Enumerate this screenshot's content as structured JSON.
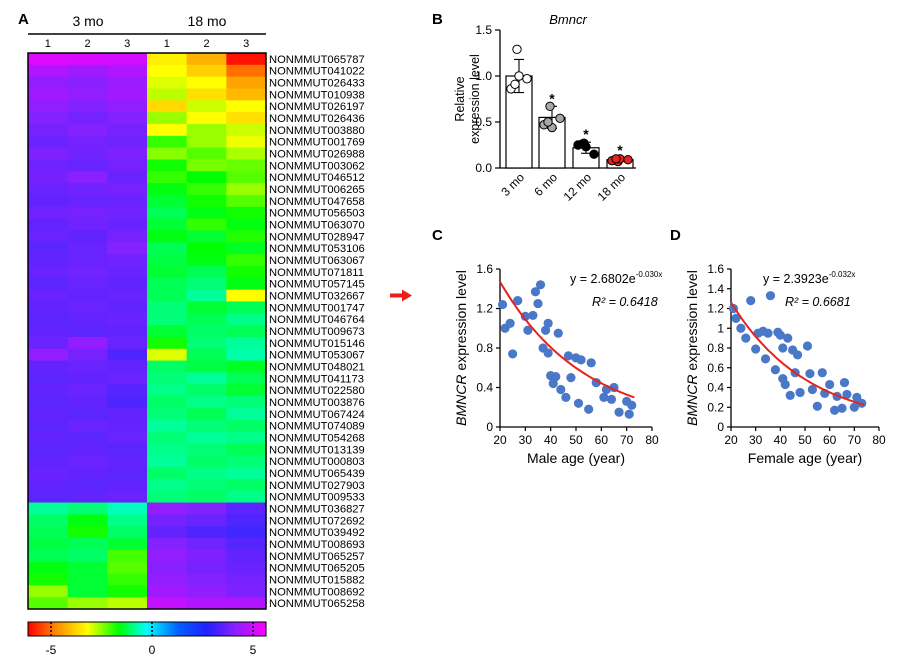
{
  "panel_letters": [
    "A",
    "B",
    "C",
    "D"
  ],
  "heatmap": {
    "group_labels": [
      "3 mo",
      "18 mo"
    ],
    "column_labels": [
      "1",
      "2",
      "3",
      "1",
      "2",
      "3"
    ],
    "highlight_row": "NONMMUT032667",
    "colorbar_ticks": [
      "-5",
      "0",
      "5"
    ],
    "arrow_color": "#e8201a"
  },
  "chart_data": [
    {
      "type": "heatmap",
      "panel": "A",
      "columns": [
        "3 mo 1",
        "3 mo 2",
        "3 mo 3",
        "18 mo 1",
        "18 mo 2",
        "18 mo 3"
      ],
      "rows": [
        "NONMMUT065787",
        "NONMMUT041022",
        "NONMMUT026433",
        "NONMMUT010938",
        "NONMMUT026197",
        "NONMMUT026436",
        "NONMMUT003880",
        "NONMMUT001769",
        "NONMMUT026988",
        "NONMMUT003062",
        "NONMMUT046512",
        "NONMMUT006265",
        "NONMMUT047658",
        "NONMMUT056503",
        "NONMMUT063070",
        "NONMMUT028947",
        "NONMMUT053106",
        "NONMMUT063067",
        "NONMMUT071811",
        "NONMMUT057145",
        "NONMMUT032667",
        "NONMMUT001747",
        "NONMMUT046764",
        "NONMMUT009673",
        "NONMMUT015146",
        "NONMMUT053067",
        "NONMMUT048021",
        "NONMMUT041173",
        "NONMMUT022580",
        "NONMMUT003876",
        "NONMMUT067424",
        "NONMMUT074089",
        "NONMMUT054268",
        "NONMMUT013139",
        "NONMMUT000803",
        "NONMMUT065439",
        "NONMMUT027903",
        "NONMMUT009533",
        "NONMMUT036827",
        "NONMMUT072692",
        "NONMMUT039492",
        "NONMMUT008693",
        "NONMMUT065257",
        "NONMMUT065205",
        "NONMMUT015882",
        "NONMMUT008692",
        "NONMMUT065258"
      ],
      "values": [
        [
          5.6,
          5.5,
          5.4,
          -3.2,
          -4.0,
          -5.8
        ],
        [
          5.0,
          4.8,
          5.0,
          -3.0,
          -3.6,
          -4.8
        ],
        [
          4.6,
          4.5,
          4.7,
          -2.8,
          -3.0,
          -4.2
        ],
        [
          4.8,
          4.6,
          4.8,
          -2.6,
          -3.4,
          -3.9
        ],
        [
          4.6,
          4.4,
          4.6,
          -3.5,
          -2.7,
          -3.0
        ],
        [
          4.4,
          4.2,
          4.4,
          -2.4,
          -3.0,
          -3.4
        ],
        [
          4.2,
          4.4,
          4.2,
          -3.0,
          -2.4,
          -2.7
        ],
        [
          4.0,
          4.2,
          4.1,
          -1.8,
          -2.4,
          -2.9
        ],
        [
          4.3,
          4.1,
          4.3,
          -2.3,
          -2.0,
          -2.5
        ],
        [
          4.1,
          4.0,
          4.2,
          -1.6,
          -2.2,
          -2.1
        ],
        [
          4.2,
          4.5,
          4.0,
          -1.8,
          -1.5,
          -2.0
        ],
        [
          4.0,
          4.1,
          4.2,
          -1.4,
          -1.8,
          -2.4
        ],
        [
          3.9,
          4.0,
          4.0,
          -1.2,
          -1.6,
          -2.0
        ],
        [
          4.1,
          4.2,
          4.1,
          -1.0,
          -1.4,
          -1.6
        ],
        [
          3.9,
          4.1,
          4.0,
          -1.2,
          -1.8,
          -1.4
        ],
        [
          4.0,
          3.9,
          4.2,
          -1.4,
          -1.2,
          -1.7
        ],
        [
          3.8,
          4.0,
          4.4,
          -1.0,
          -1.5,
          -1.3
        ],
        [
          3.9,
          4.0,
          4.1,
          -1.1,
          -1.4,
          -1.8
        ],
        [
          4.0,
          4.1,
          4.0,
          -1.2,
          -1.0,
          -1.6
        ],
        [
          3.8,
          4.0,
          3.9,
          -1.0,
          -0.8,
          -1.4
        ],
        [
          4.0,
          3.9,
          4.0,
          -1.0,
          -0.6,
          -3.0
        ],
        [
          3.9,
          4.0,
          3.9,
          -0.8,
          -1.2,
          -1.0
        ],
        [
          3.8,
          3.9,
          4.0,
          -0.8,
          -1.0,
          -0.7
        ],
        [
          3.9,
          3.8,
          3.9,
          -1.2,
          -0.9,
          -1.0
        ],
        [
          4.0,
          4.6,
          4.0,
          -1.6,
          -0.8,
          -0.6
        ],
        [
          4.6,
          4.2,
          3.6,
          -2.8,
          -1.0,
          -0.5
        ],
        [
          3.9,
          4.0,
          3.9,
          -0.9,
          -1.1,
          -1.3
        ],
        [
          3.8,
          3.9,
          4.0,
          -0.8,
          -0.6,
          -1.0
        ],
        [
          3.9,
          4.0,
          3.7,
          -0.7,
          -0.9,
          -1.2
        ],
        [
          3.8,
          3.9,
          3.6,
          -0.9,
          -0.7,
          -0.8
        ],
        [
          3.9,
          3.8,
          3.9,
          -0.8,
          -1.0,
          -0.6
        ],
        [
          3.8,
          4.0,
          3.9,
          -0.6,
          -0.8,
          -0.9
        ],
        [
          3.9,
          3.8,
          4.0,
          -0.8,
          -0.6,
          -0.7
        ],
        [
          3.8,
          3.9,
          3.8,
          -0.7,
          -0.8,
          -1.0
        ],
        [
          3.9,
          4.0,
          3.9,
          -0.6,
          -0.9,
          -0.8
        ],
        [
          4.0,
          3.9,
          3.8,
          -0.9,
          -0.7,
          -0.6
        ],
        [
          3.9,
          3.8,
          3.9,
          -0.7,
          -0.8,
          -0.9
        ],
        [
          3.8,
          3.9,
          4.0,
          -0.8,
          -0.9,
          -0.7
        ],
        [
          -0.6,
          -0.8,
          -0.4,
          4.6,
          4.4,
          3.8
        ],
        [
          -0.9,
          -1.4,
          -0.7,
          4.2,
          4.0,
          3.6
        ],
        [
          -1.0,
          -1.6,
          -0.9,
          3.9,
          3.6,
          3.4
        ],
        [
          -1.1,
          -1.0,
          -1.2,
          4.4,
          4.1,
          3.7
        ],
        [
          -1.0,
          -0.9,
          -1.9,
          4.6,
          4.3,
          3.9
        ],
        [
          -1.4,
          -1.2,
          -2.0,
          4.5,
          4.2,
          4.0
        ],
        [
          -1.6,
          -1.2,
          -1.8,
          4.6,
          4.4,
          4.2
        ],
        [
          -2.4,
          -1.2,
          -1.6,
          4.8,
          4.6,
          4.3
        ],
        [
          -2.0,
          -2.4,
          -2.6,
          5.2,
          5.0,
          5.0
        ]
      ],
      "range": [
        -6,
        6
      ]
    },
    {
      "type": "bar",
      "panel": "B",
      "title": "Bmncr",
      "ylabel": "Relative expression level",
      "categories": [
        "3 mo",
        "6 mo",
        "12 mo",
        "18 mo"
      ],
      "values": [
        1.0,
        0.55,
        0.22,
        0.09
      ],
      "errors": [
        0.18,
        0.12,
        0.06,
        0.02
      ],
      "significance": [
        "",
        "*",
        "*",
        "*"
      ],
      "points": [
        [
          1.29,
          0.86,
          1.0,
          0.97,
          0.91
        ],
        [
          0.67,
          0.47,
          0.44,
          0.54,
          0.5
        ],
        [
          0.27,
          0.25,
          0.23,
          0.15,
          0.26
        ],
        [
          0.07,
          0.08,
          0.1,
          0.09,
          0.1
        ]
      ],
      "point_fills": [
        "#ffffff",
        "#a8a8a8",
        "#000000",
        "#e8221c"
      ],
      "ylim": [
        0,
        1.5
      ],
      "yticks": [
        "0.0",
        "0.5",
        "1.0",
        "1.5"
      ]
    },
    {
      "type": "scatter",
      "panel": "C",
      "xlabel_italic": "",
      "xlabel": "Male age (year)",
      "ylabel_italic": "BMNCR",
      "ylabel": " expression level",
      "equation_prefix": "y = 2.6802e",
      "equation_exp": "-0.030x",
      "r2_label": "R² = 0.6418",
      "fit": {
        "a": 2.6802,
        "b": -0.03
      },
      "xlim": [
        20,
        80
      ],
      "ylim": [
        0,
        1.6
      ],
      "xticks": [
        "20",
        "30",
        "40",
        "50",
        "60",
        "70",
        "80"
      ],
      "yticks": [
        "0",
        "0.4",
        "0.8",
        "1.2",
        "1.6"
      ],
      "x": [
        21,
        22,
        24,
        25,
        27,
        30,
        31,
        33,
        34,
        35,
        36,
        37,
        38,
        39,
        39,
        40,
        41,
        42,
        43,
        44,
        46,
        47,
        48,
        50,
        51,
        52,
        55,
        56,
        58,
        61,
        62,
        64,
        65,
        67,
        70,
        71,
        72
      ],
      "y": [
        1.24,
        1.0,
        1.05,
        0.74,
        1.28,
        1.12,
        0.98,
        1.13,
        1.37,
        1.25,
        1.44,
        0.8,
        0.98,
        1.05,
        0.75,
        0.52,
        0.44,
        0.51,
        0.95,
        0.38,
        0.3,
        0.72,
        0.5,
        0.7,
        0.24,
        0.68,
        0.18,
        0.65,
        0.45,
        0.3,
        0.38,
        0.28,
        0.4,
        0.15,
        0.26,
        0.13,
        0.22
      ],
      "marker_color": "#4a78c8",
      "fit_color": "#e8221c"
    },
    {
      "type": "scatter",
      "panel": "D",
      "xlabel": "Female age (year)",
      "ylabel_italic": "BMNCR",
      "ylabel": " expression level",
      "equation_prefix": "y = 2.3923e",
      "equation_exp": "-0.032x",
      "r2_label": "R² = 0.6681",
      "fit": {
        "a": 2.3923,
        "b": -0.032
      },
      "xlim": [
        20,
        80
      ],
      "ylim": [
        0,
        1.6
      ],
      "xticks": [
        "20",
        "30",
        "40",
        "50",
        "60",
        "70",
        "80"
      ],
      "yticks": [
        "0",
        "0.2",
        "0.4",
        "0.6",
        "0.8",
        "1",
        "1.2",
        "1.4",
        "1.6"
      ],
      "x": [
        21,
        22,
        24,
        26,
        28,
        30,
        31,
        33,
        34,
        35,
        36,
        38,
        39,
        40,
        41,
        41,
        42,
        43,
        44,
        45,
        46,
        47,
        48,
        51,
        52,
        53,
        55,
        57,
        58,
        60,
        62,
        63,
        65,
        66,
        67,
        70,
        71,
        73
      ],
      "y": [
        1.2,
        1.1,
        1.0,
        0.9,
        1.28,
        0.79,
        0.95,
        0.97,
        0.69,
        0.95,
        1.33,
        0.58,
        0.96,
        0.93,
        0.49,
        0.8,
        0.43,
        0.9,
        0.32,
        0.78,
        0.55,
        0.73,
        0.35,
        0.82,
        0.54,
        0.38,
        0.21,
        0.55,
        0.34,
        0.43,
        0.17,
        0.31,
        0.19,
        0.45,
        0.33,
        0.2,
        0.3,
        0.24
      ],
      "marker_color": "#4a78c8",
      "fit_color": "#e8221c"
    }
  ]
}
